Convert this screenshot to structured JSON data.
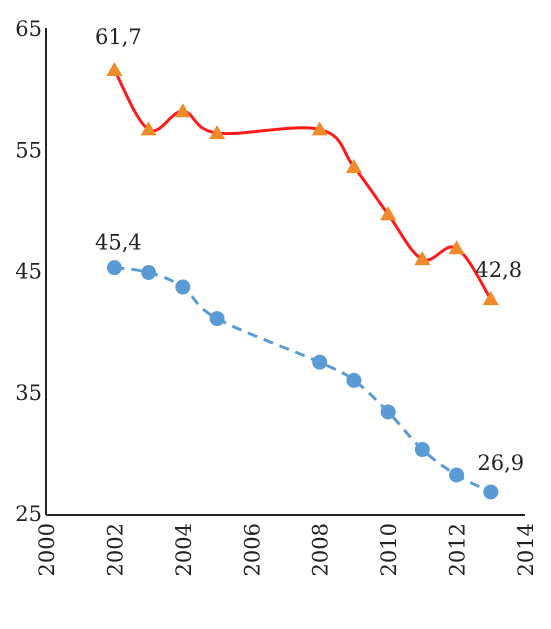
{
  "chart_data": {
    "type": "line",
    "title": "",
    "xlabel": "",
    "ylabel": "",
    "xlim": [
      2000,
      2014
    ],
    "ylim": [
      25,
      65
    ],
    "x_ticks": [
      "2000",
      "2002",
      "2004",
      "2006",
      "2008",
      "2010",
      "2012",
      "2014"
    ],
    "y_ticks": [
      "25",
      "35",
      "45",
      "55",
      "65"
    ],
    "grid": false,
    "legend": "none",
    "series": [
      {
        "color": "#ff1a1a",
        "marker_color": "#f08a2a",
        "marker": "triangle",
        "line_style": "solid",
        "x": [
          2002,
          2003,
          2004,
          2005,
          2008,
          2009,
          2010,
          2011,
          2012,
          2013
        ],
        "values": [
          61.7,
          56.8,
          58.3,
          56.5,
          56.8,
          53.7,
          49.8,
          46.1,
          47.0,
          42.8
        ]
      },
      {
        "color": "#5b9bd5",
        "marker_color": "#5b9bd5",
        "marker": "circle",
        "line_style": "dashed",
        "x": [
          2002,
          2003,
          2004,
          2005,
          2008,
          2009,
          2010,
          2011,
          2012,
          2013
        ],
        "values": [
          45.4,
          45.0,
          43.8,
          41.2,
          37.6,
          36.1,
          33.5,
          30.4,
          28.3,
          26.9
        ]
      }
    ],
    "annotations": [
      {
        "text": "61,7",
        "x": 2002,
        "y": 61.7
      },
      {
        "text": "45,4",
        "x": 2002,
        "y": 45.4
      },
      {
        "text": "42,8",
        "x": 2013,
        "y": 42.8
      },
      {
        "text": "26,9",
        "x": 2013,
        "y": 26.9
      }
    ]
  }
}
